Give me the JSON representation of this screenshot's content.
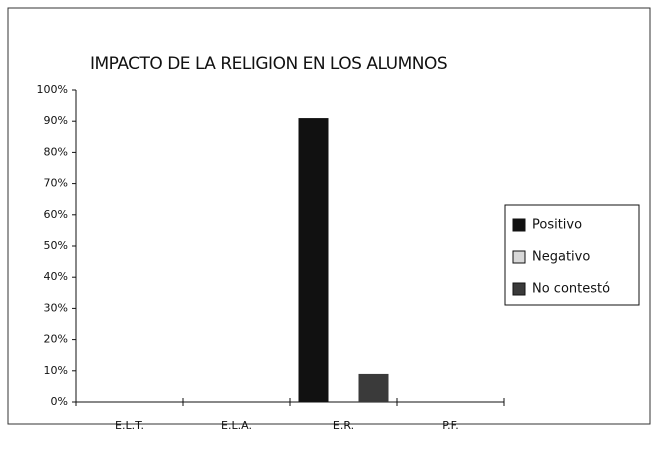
{
  "chart_data": {
    "type": "bar",
    "title": "IMPACTO DE LA RELIGION EN LOS ALUMNOS",
    "categories": [
      "E.L.T.",
      "E.L.A.",
      "E.R.",
      "P.F."
    ],
    "series": [
      {
        "name": "Positivo",
        "color": "#111111",
        "values": [
          0,
          0,
          91,
          0
        ]
      },
      {
        "name": "Negativo",
        "color": "#d8d8d8",
        "values": [
          0,
          0,
          0,
          0
        ]
      },
      {
        "name": "No contestó",
        "color": "#3a3a3a",
        "values": [
          0,
          0,
          9,
          0
        ]
      }
    ],
    "ylim": [
      0,
      100
    ],
    "yticks": [
      {
        "value": 0,
        "label": "0%"
      },
      {
        "value": 10,
        "label": "10%"
      },
      {
        "value": 20,
        "label": "20%"
      },
      {
        "value": 30,
        "label": "30%"
      },
      {
        "value": 40,
        "label": "40%"
      },
      {
        "value": 50,
        "label": "50%"
      },
      {
        "value": 60,
        "label": "60%"
      },
      {
        "value": 70,
        "label": "70%"
      },
      {
        "value": 80,
        "label": "80%"
      },
      {
        "value": 90,
        "label": "90%"
      },
      {
        "value": 100,
        "label": "100%"
      }
    ],
    "legend": "right"
  }
}
